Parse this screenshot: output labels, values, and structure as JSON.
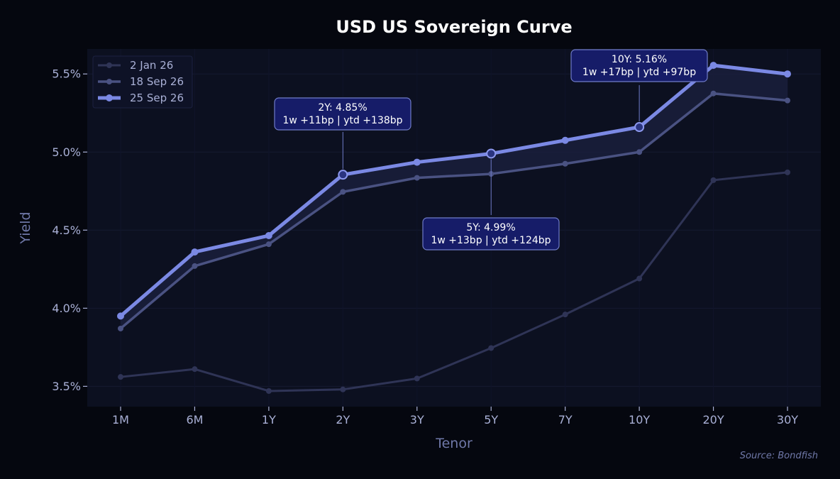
{
  "chart_data": {
    "type": "line",
    "title": "USD US Sovereign Curve",
    "xlabel": "Tenor",
    "ylabel": "Yield",
    "categories": [
      "1M",
      "6M",
      "1Y",
      "2Y",
      "3Y",
      "5Y",
      "7Y",
      "10Y",
      "20Y",
      "30Y"
    ],
    "yticks": [
      "3.5%",
      "4.0%",
      "4.5%",
      "5.0%",
      "5.5%"
    ],
    "ytick_values": [
      3.5,
      4.0,
      4.5,
      5.0,
      5.5
    ],
    "ylim": [
      3.37,
      5.66
    ],
    "grid": true,
    "legend_position": "top-left",
    "series": [
      {
        "name": "2 Jan 26",
        "color": "#2f3456",
        "values": [
          3.56,
          3.61,
          3.47,
          3.48,
          3.55,
          3.745,
          3.96,
          4.19,
          4.82,
          4.87
        ]
      },
      {
        "name": "18 Sep 26",
        "color": "#4a5282",
        "values": [
          3.87,
          4.27,
          4.41,
          4.745,
          4.835,
          4.86,
          4.925,
          5.0,
          5.375,
          5.33
        ]
      },
      {
        "name": "25 Sep 26",
        "color": "#7b89e4",
        "values": [
          3.95,
          4.36,
          4.465,
          4.855,
          4.935,
          4.99,
          5.075,
          5.16,
          5.555,
          5.5
        ]
      }
    ],
    "annotations": [
      {
        "category": "2Y",
        "line1": "2Y: 4.85%",
        "line2": "1w +11bp | ytd +138bp"
      },
      {
        "category": "5Y",
        "line1": "5Y: 4.99%",
        "line2": "1w +13bp | ytd +124bp"
      },
      {
        "category": "10Y",
        "line1": "10Y: 5.16%",
        "line2": "1w +17bp | ytd +97bp"
      }
    ],
    "source": "Source: Bondfish"
  }
}
